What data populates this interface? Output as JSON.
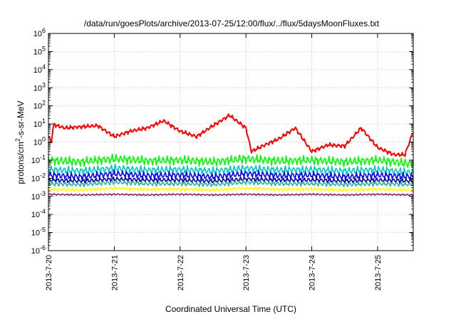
{
  "chart_data": {
    "type": "line",
    "title": "/data/run/goesPlots/archive/2013-07-25/12:00/flux/../flux/5daysMoonFluxes.txt",
    "xlabel": "Coordinated Universal Time (UTC)",
    "ylabel_main": "protons/cm",
    "ylabel_sup": "2",
    "ylabel_tail": "-s-sr-MeV",
    "y_scale": "log",
    "ylim": [
      1e-06,
      1000000.0
    ],
    "y_ticks": [
      {
        "value": 1e-06,
        "base": "10",
        "exp": "-6"
      },
      {
        "value": 1e-05,
        "base": "10",
        "exp": "-5"
      },
      {
        "value": 0.0001,
        "base": "10",
        "exp": "-4"
      },
      {
        "value": 0.001,
        "base": "10",
        "exp": "-3"
      },
      {
        "value": 0.01,
        "base": "10",
        "exp": "-2"
      },
      {
        "value": 0.1,
        "base": "10",
        "exp": "-1"
      },
      {
        "value": 1,
        "base": "10",
        "exp": "0"
      },
      {
        "value": 10,
        "base": "10",
        "exp": "1"
      },
      {
        "value": 100,
        "base": "10",
        "exp": "2"
      },
      {
        "value": 1000,
        "base": "10",
        "exp": "3"
      },
      {
        "value": 10000,
        "base": "10",
        "exp": "4"
      },
      {
        "value": 100000,
        "base": "10",
        "exp": "5"
      },
      {
        "value": 1000000,
        "base": "10",
        "exp": "6"
      }
    ],
    "x_ticks": [
      "2013-7-20",
      "2013-7-21",
      "2013-7-22",
      "2013-7-23",
      "2013-7-24",
      "2013-7-25"
    ],
    "xlim": [
      "2013-07-20T00:00",
      "2013-07-25T13:00"
    ],
    "grid": true,
    "legend": "none",
    "series": [
      {
        "color": "#ff0000",
        "x": [
          "2013-07-20T00:00",
          "2013-07-20T01:00",
          "2013-07-20T02:00",
          "2013-07-20T03:00",
          "2013-07-20T06:00",
          "2013-07-20T12:00",
          "2013-07-20T18:00",
          "2013-07-21T00:00",
          "2013-07-21T06:00",
          "2013-07-21T12:00",
          "2013-07-21T18:00",
          "2013-07-22T00:00",
          "2013-07-22T06:00",
          "2013-07-22T12:00",
          "2013-07-22T18:00",
          "2013-07-23T00:00",
          "2013-07-23T02:00",
          "2013-07-23T06:00",
          "2013-07-23T12:00",
          "2013-07-23T18:00",
          "2013-07-24T00:00",
          "2013-07-24T06:00",
          "2013-07-24T12:00",
          "2013-07-24T18:00",
          "2013-07-25T00:00",
          "2013-07-25T06:00",
          "2013-07-25T10:00",
          "2013-07-25T13:00"
        ],
        "y": [
          2,
          1,
          10,
          8,
          6,
          7,
          8,
          2,
          4,
          6,
          15,
          4,
          2,
          8,
          30,
          6,
          0.3,
          0.6,
          1.5,
          6,
          0.3,
          0.7,
          0.6,
          6,
          0.5,
          0.2,
          0.2,
          4
        ]
      },
      {
        "color": "#00ff00",
        "x": [
          "2013-07-20T00:00",
          "2013-07-20T12:00",
          "2013-07-21T00:00",
          "2013-07-21T12:00",
          "2013-07-22T00:00",
          "2013-07-22T12:00",
          "2013-07-23T00:00",
          "2013-07-23T12:00",
          "2013-07-24T00:00",
          "2013-07-24T12:00",
          "2013-07-25T00:00",
          "2013-07-25T13:00"
        ],
        "y": [
          0.1,
          0.08,
          0.12,
          0.09,
          0.1,
          0.08,
          0.12,
          0.09,
          0.1,
          0.08,
          0.1,
          0.06
        ]
      },
      {
        "color": "#00c8c8",
        "x": [
          "2013-07-20T00:00",
          "2013-07-20T12:00",
          "2013-07-21T00:00",
          "2013-07-21T12:00",
          "2013-07-22T00:00",
          "2013-07-22T12:00",
          "2013-07-23T00:00",
          "2013-07-23T12:00",
          "2013-07-24T00:00",
          "2013-07-24T12:00",
          "2013-07-25T00:00",
          "2013-07-25T13:00"
        ],
        "y": [
          0.03,
          0.025,
          0.035,
          0.028,
          0.03,
          0.025,
          0.035,
          0.028,
          0.03,
          0.025,
          0.03,
          0.02
        ]
      },
      {
        "color": "#0000ff",
        "x": [
          "2013-07-20T00:00",
          "2013-07-20T12:00",
          "2013-07-21T00:00",
          "2013-07-21T12:00",
          "2013-07-22T00:00",
          "2013-07-22T12:00",
          "2013-07-23T00:00",
          "2013-07-23T12:00",
          "2013-07-24T00:00",
          "2013-07-24T12:00",
          "2013-07-25T00:00",
          "2013-07-25T13:00"
        ],
        "y": [
          0.015,
          0.012,
          0.018,
          0.014,
          0.015,
          0.012,
          0.018,
          0.014,
          0.015,
          0.012,
          0.015,
          0.012
        ]
      },
      {
        "color": "#0000a0",
        "x": [
          "2013-07-20T00:00",
          "2013-07-20T12:00",
          "2013-07-21T00:00",
          "2013-07-21T12:00",
          "2013-07-22T00:00",
          "2013-07-22T12:00",
          "2013-07-23T00:00",
          "2013-07-23T12:00",
          "2013-07-24T00:00",
          "2013-07-24T12:00",
          "2013-07-25T00:00",
          "2013-07-25T13:00"
        ],
        "y": [
          0.008,
          0.007,
          0.009,
          0.008,
          0.008,
          0.007,
          0.009,
          0.008,
          0.008,
          0.007,
          0.008,
          0.007
        ]
      },
      {
        "color": "#30b0a0",
        "x": [
          "2013-07-20T00:00",
          "2013-07-20T12:00",
          "2013-07-21T00:00",
          "2013-07-21T12:00",
          "2013-07-22T00:00",
          "2013-07-22T12:00",
          "2013-07-23T00:00",
          "2013-07-23T12:00",
          "2013-07-24T00:00",
          "2013-07-24T12:00",
          "2013-07-25T00:00",
          "2013-07-25T13:00"
        ],
        "y": [
          0.005,
          0.0045,
          0.006,
          0.005,
          0.005,
          0.0045,
          0.006,
          0.005,
          0.005,
          0.0045,
          0.005,
          0.0045
        ]
      },
      {
        "color": "#ffff00",
        "x": [
          "2013-07-20T00:00",
          "2013-07-20T12:00",
          "2013-07-21T00:00",
          "2013-07-21T12:00",
          "2013-07-22T00:00",
          "2013-07-22T12:00",
          "2013-07-23T00:00",
          "2013-07-23T12:00",
          "2013-07-24T00:00",
          "2013-07-24T12:00",
          "2013-07-25T00:00",
          "2013-07-25T13:00"
        ],
        "y": [
          0.0025,
          0.0022,
          0.0028,
          0.0024,
          0.0025,
          0.0022,
          0.0028,
          0.0024,
          0.0025,
          0.0022,
          0.0025,
          0.0022
        ]
      },
      {
        "color": "#902080",
        "x": [
          "2013-07-20T00:00",
          "2013-07-20T12:00",
          "2013-07-21T00:00",
          "2013-07-21T12:00",
          "2013-07-22T00:00",
          "2013-07-22T12:00",
          "2013-07-23T00:00",
          "2013-07-23T12:00",
          "2013-07-24T00:00",
          "2013-07-24T12:00",
          "2013-07-25T00:00",
          "2013-07-25T13:00"
        ],
        "y": [
          0.0013,
          0.0012,
          0.0013,
          0.0012,
          0.0013,
          0.0012,
          0.0013,
          0.0012,
          0.0013,
          0.0012,
          0.0013,
          0.0012
        ]
      }
    ]
  }
}
